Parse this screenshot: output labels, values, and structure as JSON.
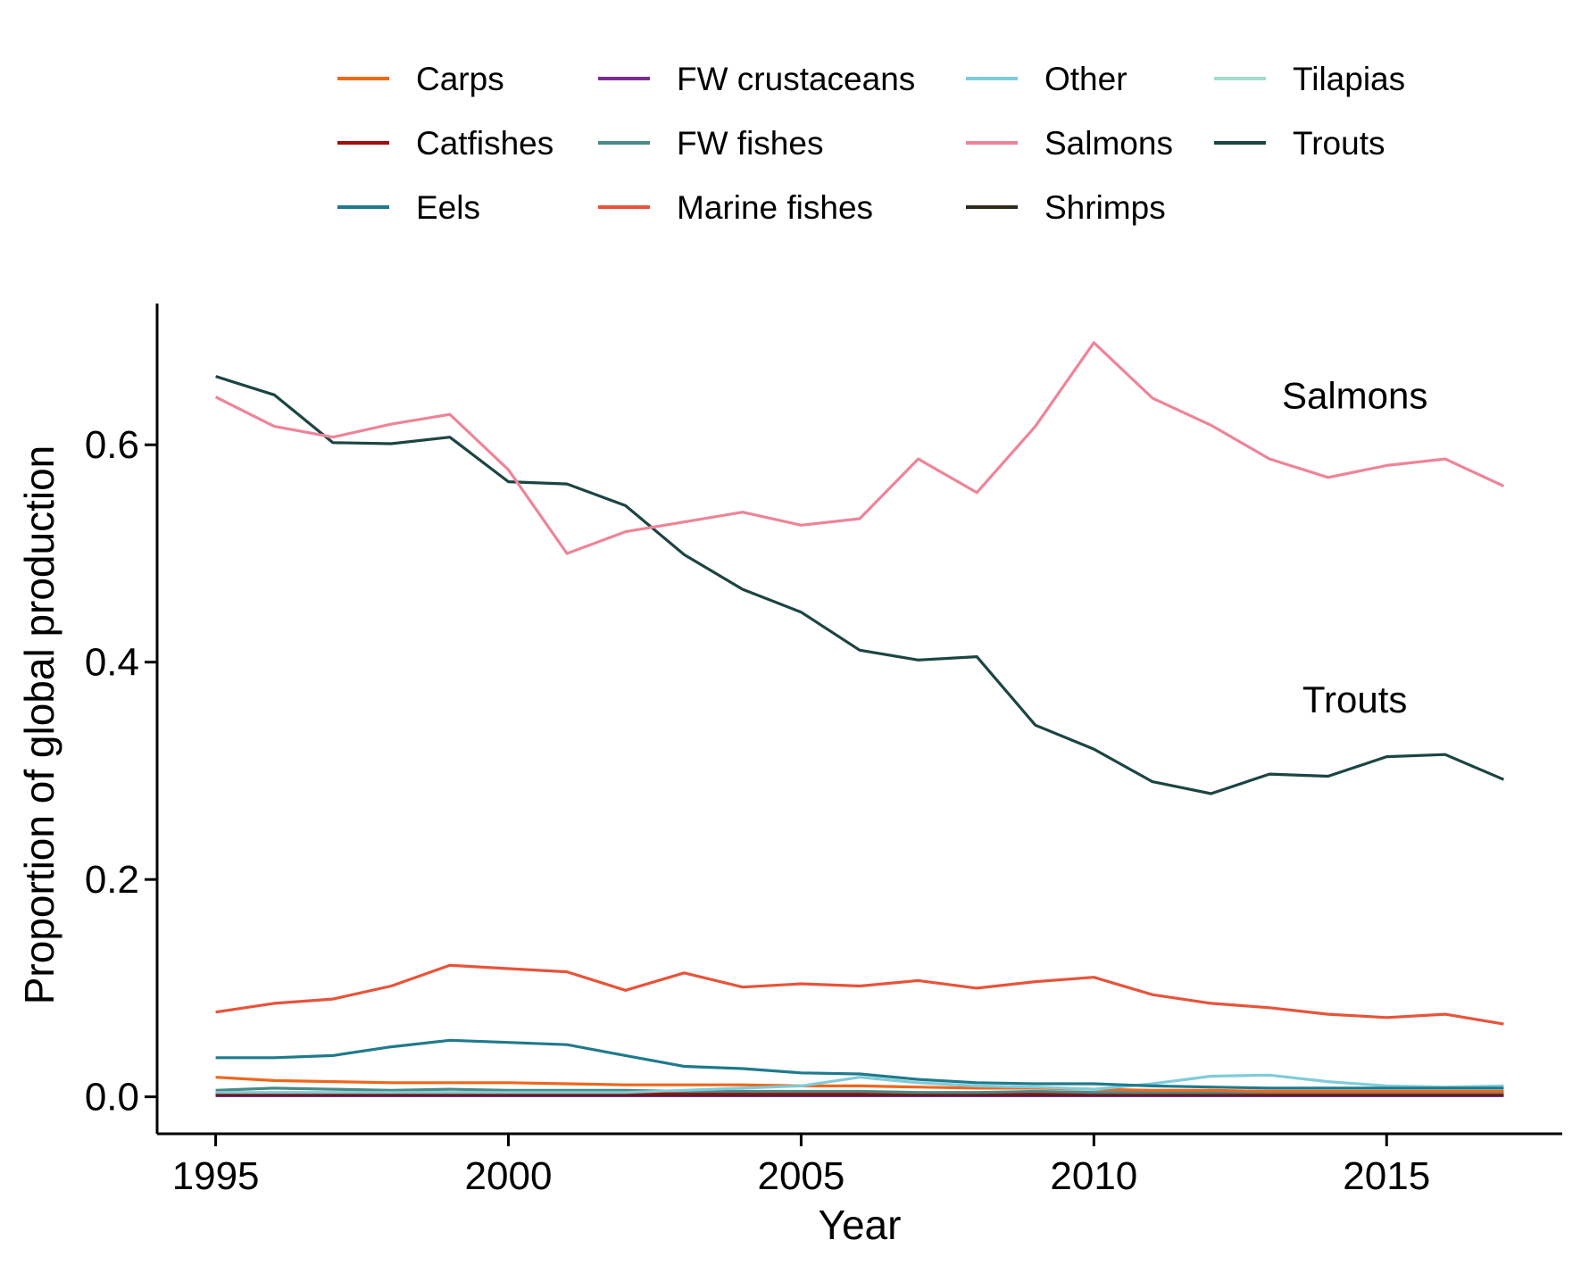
{
  "chart_data": {
    "type": "line",
    "title": "",
    "xlabel": "Year",
    "ylabel": "Proportion of global production",
    "xlim": [
      1994,
      2018
    ],
    "ylim": [
      -0.034,
      0.73
    ],
    "x_ticks": [
      1995,
      2000,
      2005,
      2010,
      2015
    ],
    "x_tick_labels": [
      "1995",
      "2000",
      "2005",
      "2010",
      "2015"
    ],
    "y_ticks": [
      0.0,
      0.2,
      0.4,
      0.6
    ],
    "y_tick_labels": [
      "0.0",
      "0.2",
      "0.4",
      "0.6"
    ],
    "grid": false,
    "legend_position": "top",
    "x": [
      1995,
      1996,
      1997,
      1998,
      1999,
      2000,
      2001,
      2002,
      2003,
      2004,
      2005,
      2006,
      2007,
      2008,
      2009,
      2010,
      2011,
      2012,
      2013,
      2014,
      2015,
      2016,
      2017
    ],
    "series": [
      {
        "name": "Carps",
        "color": "#F0661A",
        "values": [
          0.018,
          0.015,
          0.014,
          0.013,
          0.013,
          0.013,
          0.012,
          0.011,
          0.011,
          0.011,
          0.01,
          0.01,
          0.009,
          0.008,
          0.008,
          0.007,
          0.006,
          0.006,
          0.005,
          0.005,
          0.005,
          0.005,
          0.005
        ]
      },
      {
        "name": "Catfishes",
        "color": "#9E0E0E",
        "values": [
          0.003,
          0.003,
          0.003,
          0.003,
          0.003,
          0.003,
          0.003,
          0.003,
          0.003,
          0.003,
          0.003,
          0.003,
          0.003,
          0.003,
          0.003,
          0.003,
          0.003,
          0.003,
          0.003,
          0.003,
          0.003,
          0.003,
          0.003
        ]
      },
      {
        "name": "Eels",
        "color": "#1F7A8C",
        "values": [
          0.036,
          0.036,
          0.038,
          0.046,
          0.052,
          0.05,
          0.048,
          0.038,
          0.028,
          0.026,
          0.022,
          0.021,
          0.016,
          0.013,
          0.012,
          0.012,
          0.01,
          0.009,
          0.008,
          0.008,
          0.008,
          0.008,
          0.008
        ]
      },
      {
        "name": "FW crustaceans",
        "color": "#7B2D8E",
        "values": [
          0.001,
          0.001,
          0.001,
          0.001,
          0.001,
          0.001,
          0.001,
          0.001,
          0.001,
          0.001,
          0.001,
          0.001,
          0.001,
          0.001,
          0.001,
          0.001,
          0.001,
          0.001,
          0.001,
          0.001,
          0.001,
          0.001,
          0.001
        ]
      },
      {
        "name": "FW fishes",
        "color": "#4A8A88",
        "values": [
          0.006,
          0.008,
          0.007,
          0.006,
          0.007,
          0.006,
          0.006,
          0.006,
          0.005,
          0.005,
          0.005,
          0.005,
          0.004,
          0.004,
          0.005,
          0.004,
          0.004,
          0.004,
          0.004,
          0.004,
          0.004,
          0.004,
          0.004
        ]
      },
      {
        "name": "Marine fishes",
        "color": "#E8533A",
        "values": [
          0.078,
          0.086,
          0.09,
          0.102,
          0.121,
          0.118,
          0.115,
          0.098,
          0.114,
          0.101,
          0.104,
          0.102,
          0.107,
          0.1,
          0.106,
          0.11,
          0.094,
          0.086,
          0.082,
          0.076,
          0.073,
          0.076,
          0.067
        ]
      },
      {
        "name": "Other",
        "color": "#7FCCD8",
        "values": [
          0.004,
          0.004,
          0.004,
          0.004,
          0.004,
          0.004,
          0.004,
          0.004,
          0.006,
          0.008,
          0.01,
          0.018,
          0.013,
          0.01,
          0.009,
          0.007,
          0.012,
          0.019,
          0.02,
          0.014,
          0.01,
          0.009,
          0.01
        ]
      },
      {
        "name": "Salmons",
        "color": "#EE8499",
        "values": [
          0.644,
          0.617,
          0.607,
          0.619,
          0.628,
          0.577,
          0.5,
          0.52,
          0.529,
          0.538,
          0.526,
          0.532,
          0.587,
          0.556,
          0.617,
          0.694,
          0.643,
          0.618,
          0.587,
          0.57,
          0.581,
          0.587,
          0.562
        ]
      },
      {
        "name": "Shrimps",
        "color": "#2D2A1A",
        "values": [
          0.002,
          0.002,
          0.002,
          0.002,
          0.002,
          0.002,
          0.002,
          0.002,
          0.002,
          0.002,
          0.002,
          0.002,
          0.002,
          0.002,
          0.002,
          0.002,
          0.002,
          0.002,
          0.002,
          0.002,
          0.002,
          0.002,
          0.002
        ]
      },
      {
        "name": "Tilapias",
        "color": "#A4DCCB",
        "values": [
          0.001,
          0.001,
          0.001,
          0.001,
          0.001,
          0.001,
          0.001,
          0.001,
          0.001,
          0.001,
          0.001,
          0.001,
          0.001,
          0.001,
          0.001,
          0.001,
          0.001,
          0.001,
          0.001,
          0.001,
          0.001,
          0.001,
          0.001
        ]
      },
      {
        "name": "Trouts",
        "color": "#1B4542",
        "values": [
          0.663,
          0.646,
          0.602,
          0.601,
          0.607,
          0.566,
          0.564,
          0.544,
          0.499,
          0.467,
          0.446,
          0.411,
          0.402,
          0.405,
          0.342,
          0.32,
          0.29,
          0.279,
          0.297,
          0.295,
          0.313,
          0.315,
          0.292
        ]
      }
    ],
    "annotations": [
      {
        "text": "Salmons",
        "x": 2014,
        "y": 0.646
      },
      {
        "text": "Trouts",
        "x": 2014,
        "y": 0.366
      }
    ]
  }
}
